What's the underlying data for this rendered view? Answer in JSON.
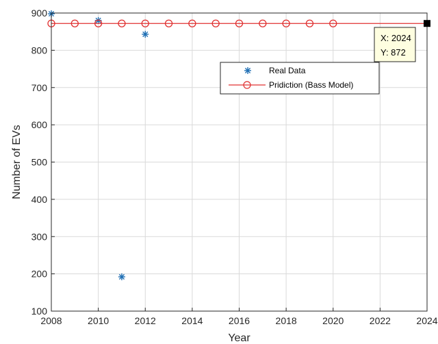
{
  "chart_data": {
    "type": "line",
    "xlabel": "Year",
    "ylabel": "Number of EVs",
    "xlim": [
      2008,
      2024
    ],
    "ylim": [
      100,
      900
    ],
    "xticks": [
      2008,
      2010,
      2012,
      2014,
      2016,
      2018,
      2020,
      2022,
      2024
    ],
    "yticks": [
      100,
      200,
      300,
      400,
      500,
      600,
      700,
      800,
      900
    ],
    "grid": true,
    "legend_position": "top-right",
    "series": [
      {
        "name": "Real Data",
        "kind": "scatter",
        "marker": "asterisk",
        "color": "#1f6fb4",
        "x": [
          2008,
          2010,
          2011,
          2012
        ],
        "y": [
          898,
          880,
          192,
          843
        ]
      },
      {
        "name": "Pridiction (Bass Model)",
        "kind": "line",
        "marker": "circle",
        "color": "#e03030",
        "x": [
          2008,
          2009,
          2010,
          2011,
          2012,
          2013,
          2014,
          2015,
          2016,
          2017,
          2018,
          2019,
          2020,
          2024
        ],
        "y": [
          872,
          872,
          872,
          872,
          872,
          872,
          872,
          872,
          872,
          872,
          872,
          872,
          872,
          872
        ],
        "marked_x": [
          2008,
          2009,
          2010,
          2011,
          2012,
          2013,
          2014,
          2015,
          2016,
          2017,
          2018,
          2019,
          2020
        ]
      }
    ],
    "datatip": {
      "x_label": "X: 2024",
      "y_label": "Y: 872",
      "x": 2024,
      "y": 872
    }
  }
}
